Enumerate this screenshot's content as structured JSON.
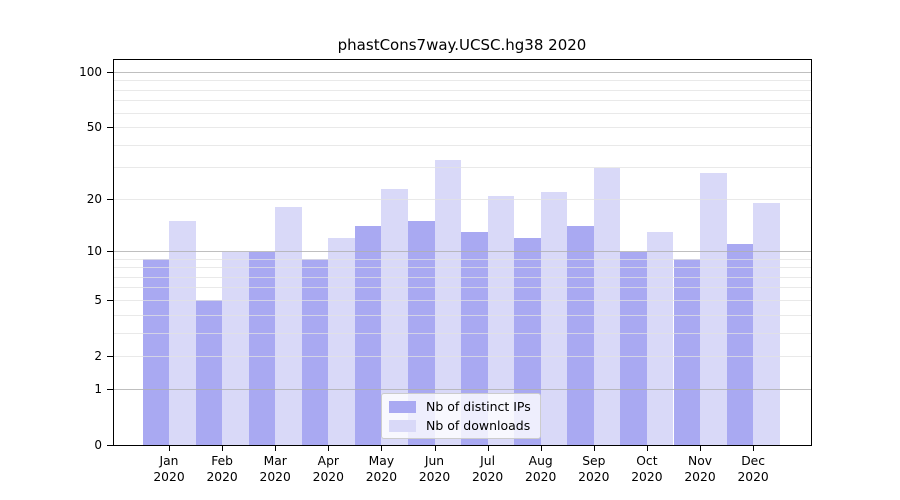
{
  "title": "phastCons7way.UCSC.hg38 2020",
  "chart_data": {
    "type": "bar",
    "title": "phastCons7way.UCSC.hg38 2020",
    "categories": [
      "Jan",
      "Feb",
      "Mar",
      "Apr",
      "May",
      "Jun",
      "Jul",
      "Aug",
      "Sep",
      "Oct",
      "Nov",
      "Dec"
    ],
    "year_label": "2020",
    "series": [
      {
        "name": "Nb of distinct IPs",
        "color": "#a9a9f2",
        "values": [
          9,
          5,
          10,
          9,
          14,
          15,
          13,
          12,
          14,
          10,
          9,
          11
        ]
      },
      {
        "name": "Nb of downloads",
        "color": "#d9d9f8",
        "values": [
          15,
          10,
          18,
          12,
          23,
          33,
          21,
          22,
          30,
          13,
          28,
          19
        ]
      }
    ],
    "yscale": "log1p",
    "ylim": [
      0,
      116
    ],
    "ytick_labels": [
      "100",
      "50",
      "20",
      "10",
      "5",
      "2",
      "1",
      "0"
    ],
    "ytick_values": [
      100,
      50,
      20,
      10,
      5,
      2,
      1,
      0
    ],
    "major_grid_values": [
      1,
      10,
      100
    ],
    "minor_grid_values": [
      2,
      3,
      4,
      5,
      6,
      7,
      8,
      9,
      20,
      30,
      40,
      50,
      60,
      70,
      80,
      90
    ],
    "grid": true,
    "legend_position": "lower center",
    "colors": {
      "axis": "#000000",
      "grid_major": "#c7c7c7",
      "grid_minor": "#e9e9e9",
      "background": "#ffffff"
    }
  }
}
